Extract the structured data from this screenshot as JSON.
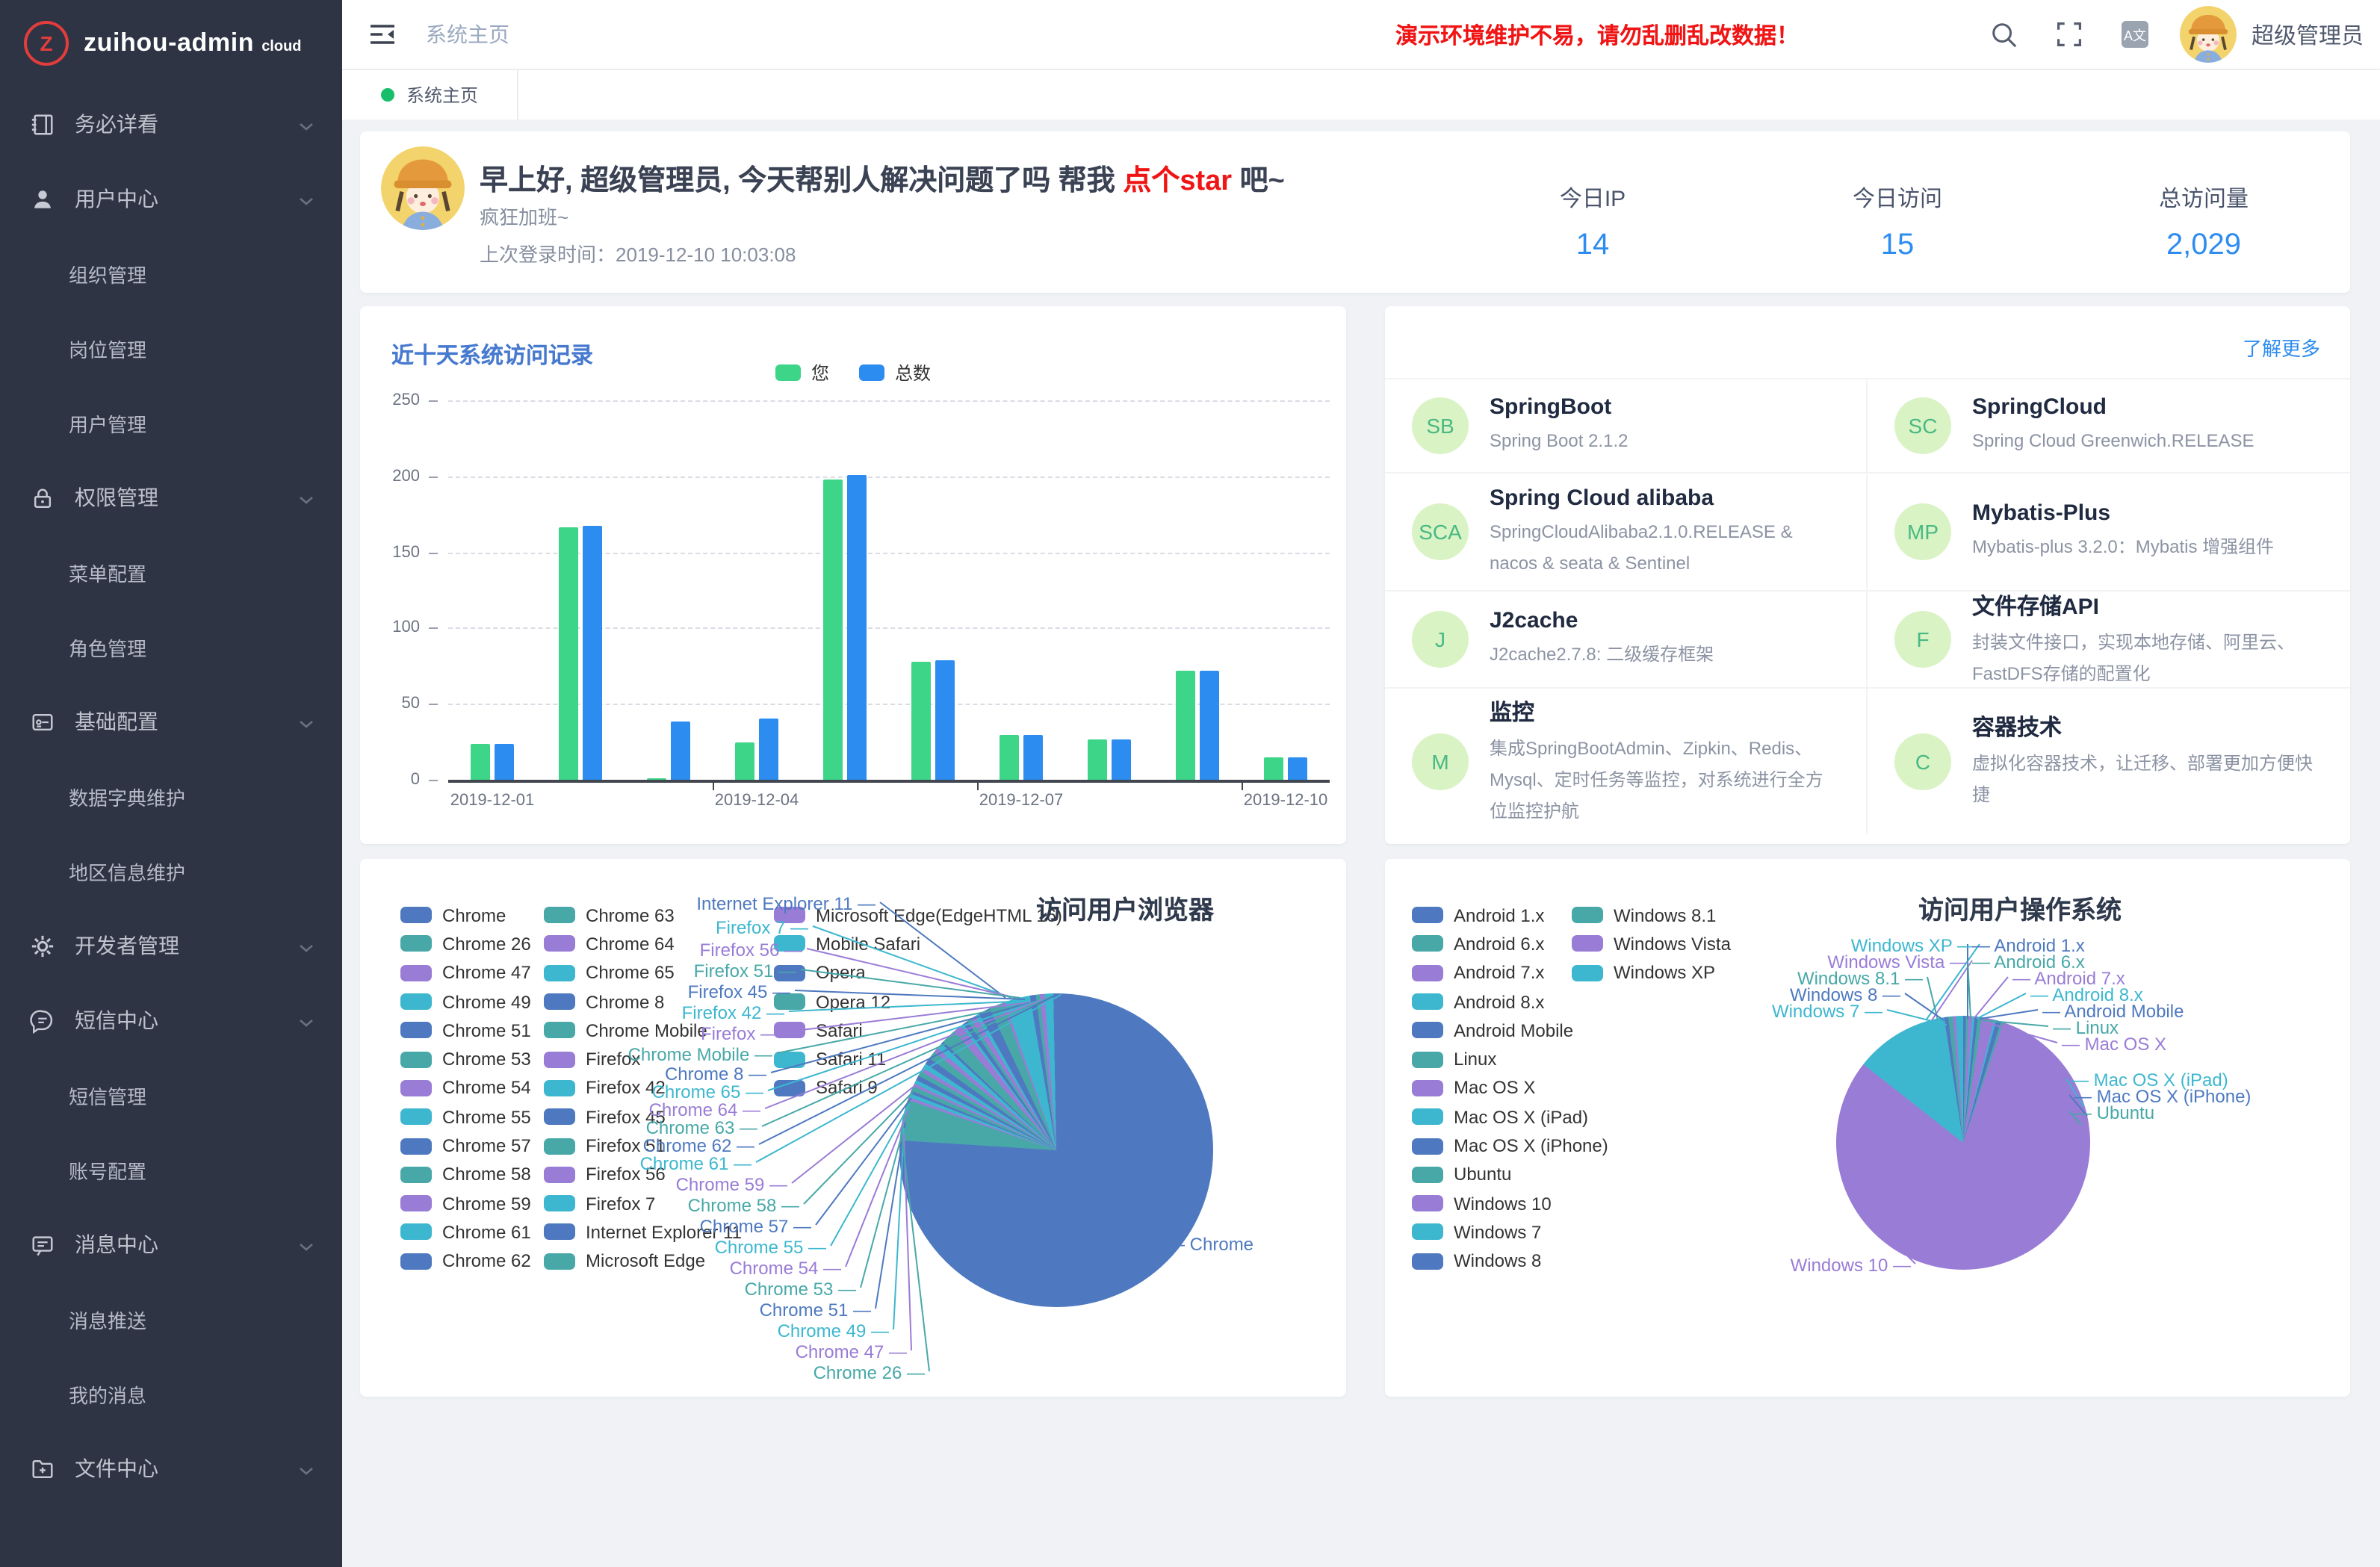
{
  "app": {
    "logo_letter": "Z",
    "title": "zuihou-admin",
    "title_suffix": "cloud"
  },
  "sidebar": {
    "items": [
      {
        "label": "务必详看",
        "icon": "notebook-icon",
        "type": "group"
      },
      {
        "label": "用户中心",
        "icon": "user-icon",
        "type": "group"
      },
      {
        "label": "组织管理",
        "type": "sub"
      },
      {
        "label": "岗位管理",
        "type": "sub"
      },
      {
        "label": "用户管理",
        "type": "sub"
      },
      {
        "label": "权限管理",
        "icon": "lock-icon",
        "type": "group"
      },
      {
        "label": "菜单配置",
        "type": "sub"
      },
      {
        "label": "角色管理",
        "type": "sub"
      },
      {
        "label": "基础配置",
        "icon": "settings-card-icon",
        "type": "group"
      },
      {
        "label": "数据字典维护",
        "type": "sub"
      },
      {
        "label": "地区信息维护",
        "type": "sub"
      },
      {
        "label": "开发者管理",
        "icon": "gear-icon",
        "type": "group"
      },
      {
        "label": "短信中心",
        "icon": "sms-bubble-icon",
        "type": "group"
      },
      {
        "label": "短信管理",
        "type": "sub"
      },
      {
        "label": "账号配置",
        "type": "sub"
      },
      {
        "label": "消息中心",
        "icon": "message-icon",
        "type": "group"
      },
      {
        "label": "消息推送",
        "type": "sub"
      },
      {
        "label": "我的消息",
        "type": "sub"
      },
      {
        "label": "文件中心",
        "icon": "folder-plus-icon",
        "type": "group"
      }
    ]
  },
  "header": {
    "breadcrumb": "系统主页",
    "warning": "演示环境维护不易，请勿乱删乱改数据！",
    "lang_badge": "A文",
    "username": "超级管理员"
  },
  "tabs": [
    {
      "label": "系统主页",
      "active": true
    }
  ],
  "greeting": {
    "title_prefix": "早上好, 超级管理员, 今天帮别人解决问题了吗 帮我 ",
    "title_link": "点个star",
    "title_suffix": " 吧~",
    "subtitle": "疯狂加班~",
    "last_login_label": "上次登录时间：",
    "last_login_time": "2019-12-10 10:03:08",
    "stats": [
      {
        "label": "今日IP",
        "value": "14"
      },
      {
        "label": "今日访问",
        "value": "15"
      },
      {
        "label": "总访问量",
        "value": "2,029"
      }
    ]
  },
  "tech": {
    "more_link": "了解更多",
    "items": [
      {
        "abbr": "SB",
        "name": "SpringBoot",
        "desc": "Spring Boot 2.1.2"
      },
      {
        "abbr": "SC",
        "name": "SpringCloud",
        "desc": "Spring Cloud Greenwich.RELEASE"
      },
      {
        "abbr": "SCA",
        "name": "Spring Cloud alibaba",
        "desc": "SpringCloudAlibaba2.1.0.RELEASE & nacos & seata & Sentinel"
      },
      {
        "abbr": "MP",
        "name": "Mybatis-Plus",
        "desc": "Mybatis-plus 3.2.0：Mybatis 增强组件"
      },
      {
        "abbr": "J",
        "name": "J2cache",
        "desc": "J2cache2.7.8: 二级缓存框架"
      },
      {
        "abbr": "F",
        "name": "文件存储API",
        "desc": "封装文件接口，实现本地存储、阿里云、FastDFS存储的配置化"
      },
      {
        "abbr": "M",
        "name": "监控",
        "desc": "集成SpringBootAdmin、Zipkin、Redis、Mysql、定时任务等监控，对系统进行全方位监控护航"
      },
      {
        "abbr": "C",
        "name": "容器技术",
        "desc": "虚拟化容器技术，让迁移、部署更加方便快捷"
      }
    ]
  },
  "colors": {
    "primary_blue": "#2d8cf0",
    "bar_green": "#3dd588",
    "tab_dot_green": "#19be6b",
    "warning_red": "#f01414",
    "sidebar_bg": "#2e3444",
    "tech_badge_bg": "#d9f3c5",
    "tech_badge_text": "#49b983",
    "pie_palette": [
      "#4e79c0",
      "#48a8a8",
      "#997cd6",
      "#3db7cf"
    ]
  },
  "chart_data": [
    {
      "type": "bar",
      "title": "近十天系统访问记录",
      "categories": [
        "2019-12-01",
        "2019-12-02",
        "2019-12-03",
        "2019-12-04",
        "2019-12-05",
        "2019-12-06",
        "2019-12-07",
        "2019-12-08",
        "2019-12-09",
        "2019-12-10"
      ],
      "series": [
        {
          "name": "您",
          "color": "#3dd588",
          "values": [
            24,
            166,
            1,
            25,
            198,
            78,
            30,
            27,
            72,
            15
          ]
        },
        {
          "name": "总数",
          "color": "#2d8cf0",
          "values": [
            24,
            167,
            38,
            40,
            201,
            79,
            30,
            27,
            72,
            15
          ]
        }
      ],
      "ylim": [
        0,
        250
      ],
      "yticks": [
        0,
        50,
        100,
        150,
        200,
        250
      ],
      "x_labels_shown": [
        "2019-12-01",
        "2019-12-04",
        "2019-12-07",
        "2019-12-10"
      ],
      "grid": "dashed",
      "legend_position": "top"
    },
    {
      "type": "pie",
      "title": "访问用户浏览器",
      "unit": "percent",
      "legend_position": "left",
      "items": [
        {
          "name": "Chrome",
          "value": 76.0
        },
        {
          "name": "Chrome 26",
          "value": 4.2
        },
        {
          "name": "Chrome 47",
          "value": 0.3
        },
        {
          "name": "Chrome 49",
          "value": 0.4
        },
        {
          "name": "Chrome 51",
          "value": 0.3
        },
        {
          "name": "Chrome 53",
          "value": 0.5
        },
        {
          "name": "Chrome 54",
          "value": 0.3
        },
        {
          "name": "Chrome 55",
          "value": 0.4
        },
        {
          "name": "Chrome 57",
          "value": 0.5
        },
        {
          "name": "Chrome 58",
          "value": 0.5
        },
        {
          "name": "Chrome 59",
          "value": 0.4
        },
        {
          "name": "Chrome 61",
          "value": 0.5
        },
        {
          "name": "Chrome 62",
          "value": 0.7
        },
        {
          "name": "Chrome 63",
          "value": 0.8
        },
        {
          "name": "Chrome 64",
          "value": 0.5
        },
        {
          "name": "Chrome 65",
          "value": 0.6
        },
        {
          "name": "Chrome 8",
          "value": 0.3
        },
        {
          "name": "Chrome Mobile",
          "value": 1.5
        },
        {
          "name": "Firefox",
          "value": 0.9
        },
        {
          "name": "Firefox 42",
          "value": 0.3
        },
        {
          "name": "Firefox 45",
          "value": 0.5
        },
        {
          "name": "Firefox 51",
          "value": 0.4
        },
        {
          "name": "Firefox 56",
          "value": 0.6
        },
        {
          "name": "Firefox 7",
          "value": 0.4
        },
        {
          "name": "Internet Explorer 11",
          "value": 1.2
        },
        {
          "name": "Microsoft Edge",
          "value": 1.4
        },
        {
          "name": "Microsoft Edge(EdgeHTML 16)",
          "value": 0.3
        },
        {
          "name": "Mobile Safari",
          "value": 2.6
        },
        {
          "name": "Opera",
          "value": 0.6
        },
        {
          "name": "Opera 12",
          "value": 0.4
        },
        {
          "name": "Safari",
          "value": 0.5
        },
        {
          "name": "Safari 11",
          "value": 0.9
        },
        {
          "name": "Safari 9",
          "value": 0.3
        }
      ]
    },
    {
      "type": "pie",
      "title": "访问用户操作系统",
      "unit": "percent",
      "legend_position": "left",
      "items": [
        {
          "name": "Android 1.x",
          "value": 0.35
        },
        {
          "name": "Android 6.x",
          "value": 0.3
        },
        {
          "name": "Android 7.x",
          "value": 0.5
        },
        {
          "name": "Android 8.x",
          "value": 0.3
        },
        {
          "name": "Android Mobile",
          "value": 0.4
        },
        {
          "name": "Linux",
          "value": 0.5
        },
        {
          "name": "Mac OS X",
          "value": 1.6
        },
        {
          "name": "Mac OS X (iPad)",
          "value": 0.25
        },
        {
          "name": "Mac OS X (iPhone)",
          "value": 0.6
        },
        {
          "name": "Ubuntu",
          "value": 0.3
        },
        {
          "name": "Windows 10",
          "value": 80.5
        },
        {
          "name": "Windows 7",
          "value": 12.0
        },
        {
          "name": "Windows 8",
          "value": 0.5
        },
        {
          "name": "Windows 8.1",
          "value": 0.6
        },
        {
          "name": "Windows Vista",
          "value": 0.4
        },
        {
          "name": "Windows XP",
          "value": 0.9
        }
      ]
    }
  ]
}
